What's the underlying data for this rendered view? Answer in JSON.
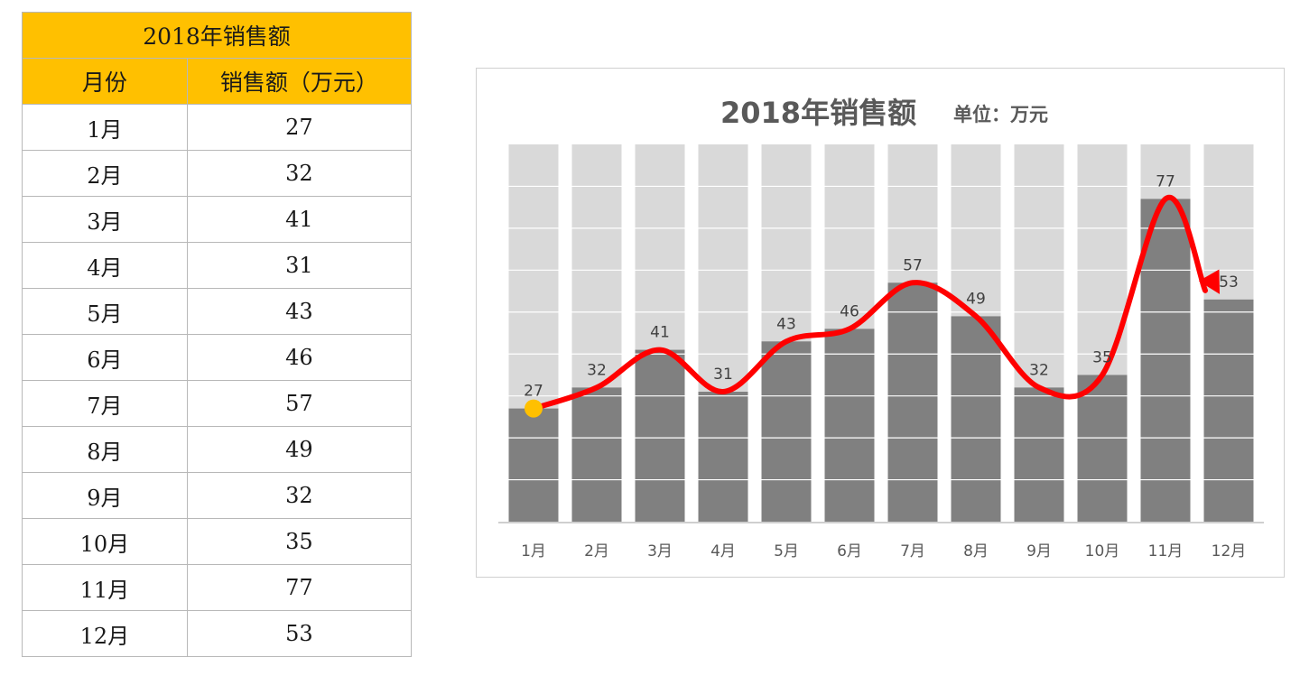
{
  "table": {
    "title": "2018年销售额",
    "headers": [
      "月份",
      "销售额（万元）"
    ],
    "rows": [
      {
        "month": "1月",
        "value": "27"
      },
      {
        "month": "2月",
        "value": "32"
      },
      {
        "month": "3月",
        "value": "41"
      },
      {
        "month": "4月",
        "value": "31"
      },
      {
        "month": "5月",
        "value": "43"
      },
      {
        "month": "6月",
        "value": "46"
      },
      {
        "month": "7月",
        "value": "57"
      },
      {
        "month": "8月",
        "value": "49"
      },
      {
        "month": "9月",
        "value": "32"
      },
      {
        "month": "10月",
        "value": "35"
      },
      {
        "month": "11月",
        "value": "77"
      },
      {
        "month": "12月",
        "value": "53"
      }
    ]
  },
  "colors": {
    "header_bg": "#ffc000",
    "bar_fill": "#808080",
    "bar_background": "#d9d9d9",
    "trend_line": "#ff0000",
    "start_marker": "#ffc000"
  },
  "chart_data": {
    "type": "bar",
    "title": "2018年销售额",
    "subtitle": "单位：万元",
    "categories": [
      "1月",
      "2月",
      "3月",
      "4月",
      "5月",
      "6月",
      "7月",
      "8月",
      "9月",
      "10月",
      "11月",
      "12月"
    ],
    "series": [
      {
        "values": [
          27,
          32,
          41,
          31,
          43,
          46,
          57,
          49,
          32,
          35,
          77,
          53
        ]
      }
    ],
    "background_bar_value": 90,
    "ylim": [
      0,
      90
    ],
    "ytick_step": 10,
    "y_axis_visible": false,
    "grid": true,
    "data_labels": true,
    "overlay": "smooth trend line through bar tops with start marker and end arrow",
    "xlabel": "",
    "ylabel": ""
  }
}
